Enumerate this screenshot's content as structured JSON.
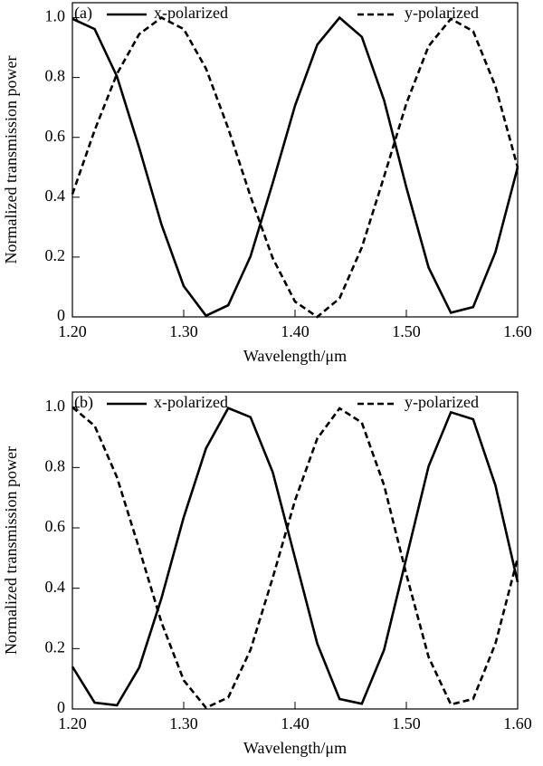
{
  "chart_data": [
    {
      "type": "line",
      "panel_label": "(a)",
      "x_label": "Wavelength/μm",
      "y_label": "Normalized transmission power",
      "x": [
        1.2,
        1.22,
        1.24,
        1.26,
        1.28,
        1.3,
        1.32,
        1.34,
        1.36,
        1.38,
        1.4,
        1.42,
        1.44,
        1.46,
        1.48,
        1.5,
        1.52,
        1.54,
        1.56,
        1.58,
        1.6
      ],
      "series": [
        {
          "name": "x-polarized",
          "color": "#000000",
          "line_style": "solid",
          "values": [
            0.996,
            0.962,
            0.804,
            0.565,
            0.309,
            0.103,
            0.004,
            0.039,
            0.202,
            0.448,
            0.706,
            0.91,
            1.0,
            0.936,
            0.724,
            0.433,
            0.165,
            0.014,
            0.033,
            0.216,
            0.5
          ]
        },
        {
          "name": "y-polarized",
          "color": "#000000",
          "line_style": "dashed",
          "values": [
            0.41,
            0.624,
            0.812,
            0.945,
            1.0,
            0.962,
            0.83,
            0.63,
            0.403,
            0.196,
            0.051,
            0,
            0.062,
            0.232,
            0.469,
            0.713,
            0.905,
            0.996,
            0.955,
            0.771,
            0.5
          ]
        }
      ],
      "xlim": [
        1.2,
        1.6
      ],
      "xticks": [
        {
          "value": 1.2,
          "label": "1.20"
        },
        {
          "value": 1.3,
          "label": "1.30"
        },
        {
          "value": 1.4,
          "label": "1.40"
        },
        {
          "value": 1.5,
          "label": "1.50"
        },
        {
          "value": 1.6,
          "label": "1.60"
        }
      ],
      "ylim": [
        0,
        1.05
      ],
      "yticks": [
        0,
        0.2,
        0.4,
        0.6,
        0.8,
        {
          "value": 1,
          "label": "1.0"
        }
      ]
    },
    {
      "type": "line",
      "panel_label": "(b)",
      "x_label": "Wavelength/μm",
      "y_label": "Normalized transmission power",
      "x": [
        1.2,
        1.22,
        1.24,
        1.26,
        1.28,
        1.3,
        1.32,
        1.34,
        1.36,
        1.38,
        1.4,
        1.42,
        1.44,
        1.46,
        1.48,
        1.5,
        1.52,
        1.54,
        1.56,
        1.58,
        1.6
      ],
      "series": [
        {
          "name": "x-polarized",
          "color": "#000000",
          "line_style": "solid",
          "values": [
            0.14,
            0.021,
            0.012,
            0.137,
            0.367,
            0.635,
            0.863,
            0.997,
            0.967,
            0.784,
            0.5,
            0.216,
            0.033,
            0.017,
            0.196,
            0.5,
            0.804,
            0.983,
            0.96,
            0.741,
            0.42
          ]
        },
        {
          "name": "y-polarized",
          "color": "#000000",
          "line_style": "dashed",
          "values": [
            1.0,
            0.938,
            0.768,
            0.531,
            0.287,
            0.095,
            0.004,
            0.038,
            0.196,
            0.435,
            0.691,
            0.896,
            0.996,
            0.949,
            0.741,
            0.446,
            0.172,
            0.015,
            0.033,
            0.216,
            0.5
          ]
        }
      ],
      "xlim": [
        1.2,
        1.6
      ],
      "xticks": [
        {
          "value": 1.2,
          "label": "1.20"
        },
        {
          "value": 1.3,
          "label": "1.30"
        },
        {
          "value": 1.4,
          "label": "1.40"
        },
        {
          "value": 1.5,
          "label": "1.50"
        },
        {
          "value": 1.6,
          "label": "1.60"
        }
      ],
      "ylim": [
        0,
        1.05
      ],
      "yticks": [
        0,
        0.2,
        0.4,
        0.6,
        0.8,
        {
          "value": 1,
          "label": "1.0"
        }
      ]
    }
  ]
}
